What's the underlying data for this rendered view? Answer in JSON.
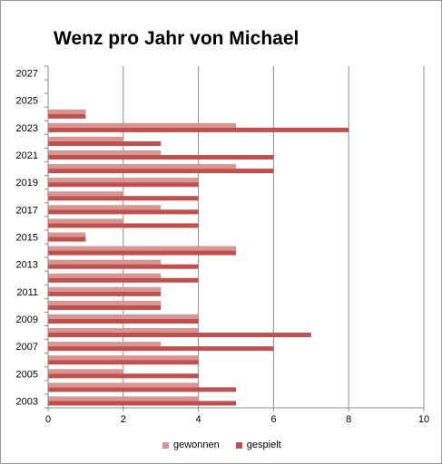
{
  "chart_data": {
    "type": "bar",
    "orientation": "horizontal",
    "title": "Wenz pro Jahr von Michael",
    "xlabel": "",
    "ylabel": "",
    "xlim": [
      0,
      10
    ],
    "x_ticks": [
      "0",
      "2",
      "4",
      "6",
      "8",
      "10"
    ],
    "y_ticks": [
      "2003",
      "2005",
      "2007",
      "2009",
      "2011",
      "2013",
      "2015",
      "2017",
      "2019",
      "2021",
      "2023",
      "2025",
      "2027"
    ],
    "categories": [
      2003,
      2004,
      2005,
      2006,
      2007,
      2008,
      2009,
      2010,
      2011,
      2012,
      2013,
      2014,
      2015,
      2016,
      2017,
      2018,
      2019,
      2020,
      2021,
      2022,
      2023,
      2024,
      2025,
      2026,
      2027
    ],
    "series": [
      {
        "name": "gewonnen",
        "color": "#d99594",
        "values": [
          4,
          4,
          2,
          4,
          3,
          4,
          4,
          3,
          3,
          3,
          3,
          5,
          1,
          2,
          3,
          2,
          4,
          5,
          3,
          2,
          5,
          1,
          0,
          0,
          0
        ]
      },
      {
        "name": "gespielt",
        "color": "#c0504d",
        "values": [
          5,
          5,
          4,
          4,
          6,
          7,
          4,
          3,
          3,
          4,
          4,
          5,
          1,
          4,
          4,
          4,
          4,
          6,
          6,
          3,
          8,
          1,
          0,
          0,
          0
        ]
      }
    ],
    "grid": "vertical",
    "legend": "bottom"
  }
}
